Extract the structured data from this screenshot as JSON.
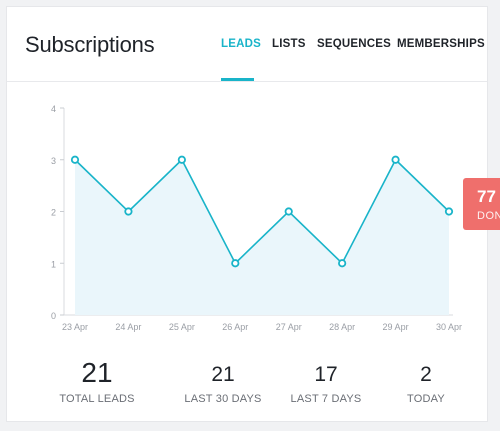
{
  "header": {
    "title": "Subscriptions",
    "tabs": [
      {
        "label": "LEADS",
        "active": true
      },
      {
        "label": "LISTS",
        "active": false
      },
      {
        "label": "SEQUENCES",
        "active": false
      },
      {
        "label": "MEMBERSHIPS",
        "active": false
      }
    ]
  },
  "chart_data": {
    "type": "area",
    "categories": [
      "23 Apr",
      "24 Apr",
      "25 Apr",
      "26 Apr",
      "27 Apr",
      "28 Apr",
      "29 Apr",
      "30 Apr"
    ],
    "values": [
      3,
      2,
      3,
      1,
      2,
      1,
      3,
      2
    ],
    "yticks": [
      "0",
      "1",
      "2",
      "3",
      "4"
    ],
    "ylim": [
      0,
      4
    ],
    "line_color": "#19b4c9",
    "fill_color": "#eaf6fb",
    "grid": false
  },
  "stats": [
    {
      "value": "21",
      "label": "TOTAL LEADS"
    },
    {
      "value": "21",
      "label": "LAST 30 DAYS"
    },
    {
      "value": "17",
      "label": "LAST 7 DAYS"
    },
    {
      "value": "2",
      "label": "TODAY"
    }
  ],
  "side_badge": {
    "number": "77",
    "label": "DON",
    "color": "#ef6f6c"
  },
  "colors": {
    "accent": "#19b4c9",
    "text": "#1f2329",
    "muted": "#6a6e75"
  }
}
